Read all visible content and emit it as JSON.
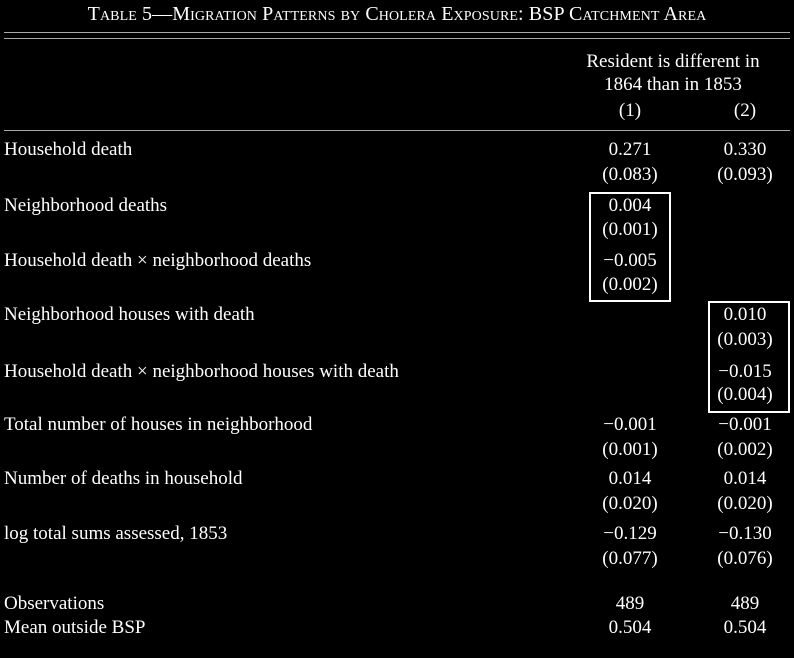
{
  "title": "Table 5—Migration Patterns by Cholera Exposure: BSP Catchment Area",
  "header": {
    "group_line1": "Resident is different in",
    "group_line2": "1864 than in 1853",
    "col1": "(1)",
    "col2": "(2)"
  },
  "rows": [
    {
      "label": "Household death",
      "c1": "0.271",
      "c1se": "(0.083)",
      "c2": "0.330",
      "c2se": "(0.093)"
    },
    {
      "label": "Neighborhood deaths",
      "c1": "0.004",
      "c1se": "(0.001)",
      "c2": "",
      "c2se": ""
    },
    {
      "label": "Household death × neighborhood deaths",
      "c1": "−0.005",
      "c1se": "(0.002)",
      "c2": "",
      "c2se": ""
    },
    {
      "label": "Neighborhood houses with death",
      "c1": "",
      "c1se": "",
      "c2": "0.010",
      "c2se": "(0.003)"
    },
    {
      "label": "Household death × neighborhood houses with death",
      "c1": "",
      "c1se": "",
      "c2": "−0.015",
      "c2se": "(0.004)"
    },
    {
      "label": "Total number of houses in neighborhood",
      "c1": "−0.001",
      "c1se": "(0.001)",
      "c2": "−0.001",
      "c2se": "(0.002)"
    },
    {
      "label": "Number of deaths in household",
      "c1": "0.014",
      "c1se": "(0.020)",
      "c2": "0.014",
      "c2se": "(0.020)"
    },
    {
      "label": "log total sums assessed, 1853",
      "c1": "−0.129",
      "c1se": "(0.077)",
      "c2": "−0.130",
      "c2se": "(0.076)"
    }
  ],
  "footer": [
    {
      "label": "Observations",
      "c1": "489",
      "c2": "489"
    },
    {
      "label": "Mean outside BSP",
      "c1": "0.504",
      "c2": "0.504"
    }
  ]
}
